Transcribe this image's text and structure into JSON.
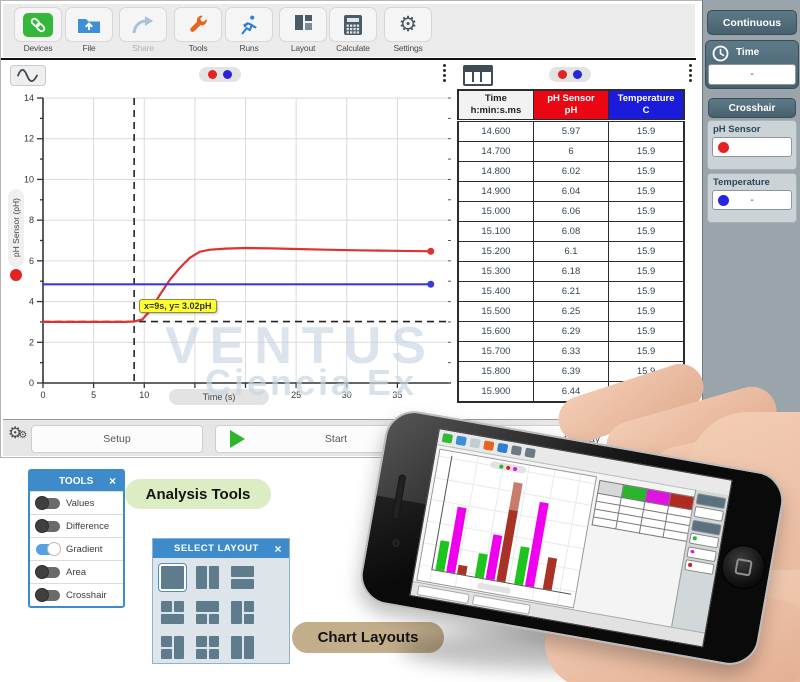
{
  "toolbar": {
    "buttons": [
      {
        "label": "Devices",
        "icon": "link-icon",
        "disabled": false
      },
      {
        "label": "File",
        "icon": "folder-icon",
        "disabled": false
      },
      {
        "label": "Share",
        "icon": "share-arrow-icon",
        "disabled": true
      },
      {
        "label": "Tools",
        "icon": "wrench-icon",
        "disabled": false
      },
      {
        "label": "Runs",
        "icon": "runner-icon",
        "disabled": false
      },
      {
        "label": "Layout",
        "icon": "layout-icon",
        "disabled": false
      },
      {
        "label": "Calculate",
        "icon": "calculator-icon",
        "disabled": false
      },
      {
        "label": "Settings",
        "icon": "gear-icon",
        "disabled": false
      }
    ]
  },
  "graph": {
    "y_axis_label": "pH Sensor (pH)",
    "x_axis_label": "Time (s)",
    "tooltip": "x=9s, y= 3.02pH",
    "legend_dot_colors": [
      "#e32222",
      "#2525dd"
    ]
  },
  "chart_data": {
    "type": "line",
    "title": "",
    "xlabel": "Time (s)",
    "ylabel": "pH Sensor (pH)",
    "xlim": [
      0,
      40
    ],
    "ylim": [
      0,
      14
    ],
    "x_ticks": [
      0,
      5,
      10,
      15,
      20,
      25,
      30,
      35
    ],
    "y_ticks": [
      0,
      2,
      4,
      6,
      8,
      10,
      12,
      14
    ],
    "grid": true,
    "series": [
      {
        "name": "pH Sensor",
        "color": "#e03131",
        "points": [
          [
            0,
            3.0
          ],
          [
            4,
            3.0
          ],
          [
            8,
            3.0
          ],
          [
            9,
            3.02
          ],
          [
            9.8,
            3.12
          ],
          [
            10.5,
            3.5
          ],
          [
            11.5,
            4.3
          ],
          [
            12.5,
            5.05
          ],
          [
            13.5,
            5.65
          ],
          [
            14.5,
            6.15
          ],
          [
            15.5,
            6.45
          ],
          [
            16.5,
            6.55
          ],
          [
            18,
            6.6
          ],
          [
            20,
            6.63
          ],
          [
            22.5,
            6.61
          ],
          [
            25,
            6.58
          ],
          [
            28,
            6.55
          ],
          [
            31,
            6.52
          ],
          [
            34,
            6.5
          ],
          [
            38.3,
            6.47
          ]
        ]
      },
      {
        "name": "Temperature",
        "color": "#3a3ae0",
        "points": [
          [
            0,
            4.85
          ],
          [
            38.3,
            4.85
          ]
        ]
      }
    ],
    "crosshair": {
      "x": 9,
      "y": 3.02
    }
  },
  "table": {
    "columns": [
      {
        "title": "Time",
        "unit": "h:min:s.ms",
        "bg": "#f2f2f2",
        "fg": "#222222"
      },
      {
        "title": "pH Sensor",
        "unit": "pH",
        "bg": "#ea0613",
        "fg": "#ffffff"
      },
      {
        "title": "Temperature",
        "unit": "C",
        "bg": "#1b1bdc",
        "fg": "#ffffff"
      }
    ],
    "rows": [
      [
        "14.600",
        "5.97",
        "15.9"
      ],
      [
        "14.700",
        "6",
        "15.9"
      ],
      [
        "14.800",
        "6.02",
        "15.9"
      ],
      [
        "14.900",
        "6.04",
        "15.9"
      ],
      [
        "15.000",
        "6.06",
        "15.9"
      ],
      [
        "15.100",
        "6.08",
        "15.9"
      ],
      [
        "15.200",
        "6.1",
        "15.9"
      ],
      [
        "15.300",
        "6.18",
        "15.9"
      ],
      [
        "15.400",
        "6.21",
        "15.9"
      ],
      [
        "15.500",
        "6.25",
        "15.9"
      ],
      [
        "15.600",
        "6.29",
        "15.9"
      ],
      [
        "15.700",
        "6.33",
        "15.9"
      ],
      [
        "15.800",
        "6.39",
        "15.9"
      ],
      [
        "15.900",
        "6.44",
        "15.9"
      ]
    ]
  },
  "sidebar": {
    "mode_button": "Continuous",
    "time_label": "Time",
    "time_value": "-",
    "crosshair_title": "Crosshair",
    "channels": [
      {
        "label": "pH Sensor",
        "dot": "#e32222",
        "value": ""
      },
      {
        "label": "Temperature",
        "dot": "#2525dd",
        "value": "-"
      }
    ]
  },
  "bottombar": {
    "setup": "Setup",
    "start": "Start",
    "overlay": "Overlay"
  },
  "tools_panel": {
    "title": "TOOLS",
    "close": "×",
    "items": [
      {
        "label": "Values",
        "on": false
      },
      {
        "label": "Difference",
        "on": false
      },
      {
        "label": "Gradient",
        "on": true
      },
      {
        "label": "Area",
        "on": false
      },
      {
        "label": "Crosshair",
        "on": false
      }
    ]
  },
  "layout_panel": {
    "title": "SELECT LAYOUT",
    "close": "×",
    "options": [
      {
        "name": "single",
        "selected": true,
        "cells": [
          [
            1,
            1,
            2,
            2
          ]
        ]
      },
      {
        "name": "two-columns",
        "selected": false,
        "cells": [
          [
            1,
            1,
            1,
            2
          ],
          [
            2,
            1,
            1,
            2
          ]
        ]
      },
      {
        "name": "two-rows",
        "selected": false,
        "cells": [
          [
            1,
            1,
            2,
            1
          ],
          [
            1,
            2,
            2,
            1
          ]
        ]
      },
      {
        "name": "two-top-one-bottom",
        "selected": false,
        "cells": [
          [
            1,
            1,
            1,
            1
          ],
          [
            2,
            1,
            1,
            1
          ],
          [
            1,
            2,
            2,
            1
          ]
        ]
      },
      {
        "name": "one-top-two-bottom",
        "selected": false,
        "cells": [
          [
            1,
            1,
            2,
            1
          ],
          [
            1,
            2,
            1,
            1
          ],
          [
            2,
            2,
            1,
            1
          ]
        ]
      },
      {
        "name": "one-left-two-right",
        "selected": false,
        "cells": [
          [
            1,
            1,
            1,
            2
          ],
          [
            2,
            1,
            1,
            1
          ],
          [
            2,
            2,
            1,
            1
          ]
        ]
      },
      {
        "name": "two-left-one-right",
        "selected": false,
        "cells": [
          [
            1,
            1,
            1,
            1
          ],
          [
            1,
            2,
            1,
            1
          ],
          [
            2,
            1,
            1,
            2
          ]
        ]
      },
      {
        "name": "four-quadrants",
        "selected": false,
        "cells": [
          [
            1,
            1,
            1,
            1
          ],
          [
            2,
            1,
            1,
            1
          ],
          [
            1,
            2,
            1,
            1
          ],
          [
            2,
            2,
            1,
            1
          ]
        ]
      },
      {
        "name": "two-columns-b",
        "selected": false,
        "cells": [
          [
            1,
            1,
            1,
            2
          ],
          [
            2,
            1,
            1,
            2
          ]
        ]
      }
    ]
  },
  "callouts": {
    "analysis": "Analysis Tools",
    "layouts": "Chart Layouts"
  },
  "watermark": {
    "line1": "VENTUS",
    "line2": "Ciencia Ex"
  },
  "phone": {
    "screen_bars": [
      {
        "color": "#1dc41d",
        "height": 30
      },
      {
        "color": "#ee00ee",
        "height": 66
      },
      {
        "color": "#a93226",
        "height": 9
      },
      {
        "color": "#1dc41d",
        "height": 24
      },
      {
        "color": "#ee00ee",
        "height": 45
      },
      {
        "color": "#a93226",
        "height": 100
      },
      {
        "color": "#1dc41d",
        "height": 38
      },
      {
        "color": "#ee00ee",
        "height": 85
      },
      {
        "color": "#a93226",
        "height": 32
      }
    ],
    "mini_table_header_colors": [
      "#d8d8d8",
      "#2bb52b",
      "#e014e0",
      "#b02a20"
    ],
    "toolbar_icon_colors": [
      "#35b83a",
      "#3f8fd6",
      "#c3cdd4",
      "#e8641f",
      "#2f7fd0",
      "#6b7b85",
      "#6b7b85"
    ],
    "legend_dot_colors": [
      "#2bb52b",
      "#d22222",
      "#e014e0"
    ],
    "sidebar_dot_colors": [
      "#2bb52b",
      "#e014e0",
      "#cc2222"
    ]
  }
}
